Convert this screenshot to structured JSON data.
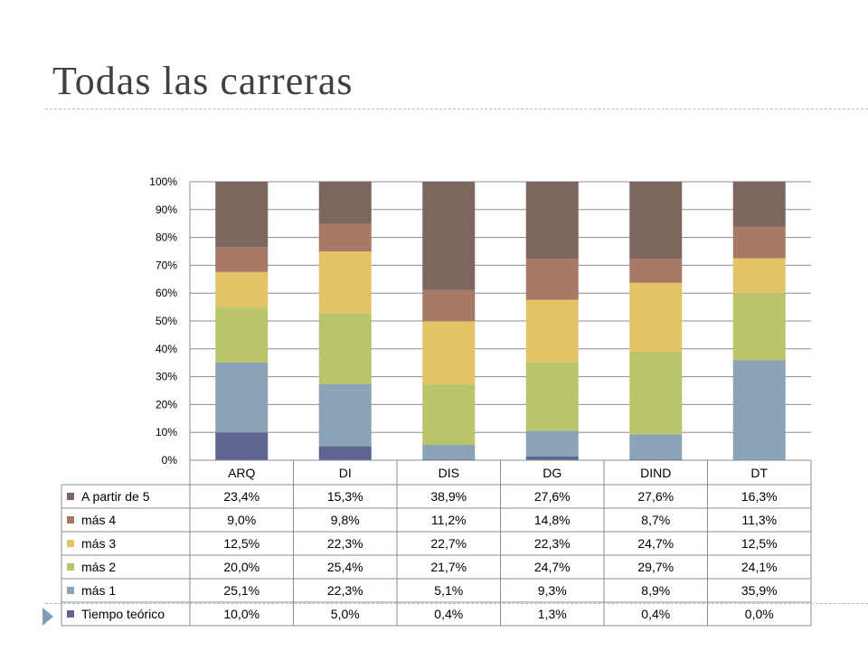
{
  "slide": {
    "title": "Todas las carreras"
  },
  "chart_data": {
    "type": "bar",
    "stacked": "percent",
    "categories": [
      "ARQ",
      "DI",
      "DIS",
      "DG",
      "DIND",
      "DT"
    ],
    "ylim": [
      0,
      100
    ],
    "yticks": [
      "0%",
      "10%",
      "20%",
      "30%",
      "40%",
      "50%",
      "60%",
      "70%",
      "80%",
      "90%",
      "100%"
    ],
    "grid": true,
    "legend": "data table",
    "series": [
      {
        "name": "Tiempo teórico",
        "color": "#5f6591",
        "values": [
          10.0,
          5.0,
          0.4,
          1.3,
          0.4,
          0.0
        ],
        "labels": [
          "10,0%",
          "5,0%",
          "0,4%",
          "1,3%",
          "0,4%",
          "0,0%"
        ]
      },
      {
        "name": "más 1",
        "color": "#8ba3b6",
        "values": [
          25.1,
          22.3,
          5.1,
          9.3,
          8.9,
          35.9
        ],
        "labels": [
          "25,1%",
          "22,3%",
          "5,1%",
          "9,3%",
          "8,9%",
          "35,9%"
        ]
      },
      {
        "name": "más 2",
        "color": "#b9c46b",
        "values": [
          20.0,
          25.4,
          21.7,
          24.7,
          29.7,
          24.1
        ],
        "labels": [
          "20,0%",
          "25,4%",
          "21,7%",
          "24,7%",
          "29,7%",
          "24,1%"
        ]
      },
      {
        "name": "más 3",
        "color": "#e2c466",
        "values": [
          12.5,
          22.3,
          22.7,
          22.3,
          24.7,
          12.5
        ],
        "labels": [
          "12,5%",
          "22,3%",
          "22,7%",
          "22,3%",
          "24,7%",
          "12,5%"
        ]
      },
      {
        "name": "más 4",
        "color": "#a87967",
        "values": [
          9.0,
          9.8,
          11.2,
          14.8,
          8.7,
          11.3
        ],
        "labels": [
          "9,0%",
          "9,8%",
          "11,2%",
          "14,8%",
          "8,7%",
          "11,3%"
        ]
      },
      {
        "name": "A partir de 5",
        "color": "#7d665d",
        "values": [
          23.4,
          15.3,
          38.9,
          27.6,
          27.6,
          16.3
        ],
        "labels": [
          "23,4%",
          "15,3%",
          "38,9%",
          "27,6%",
          "27,6%",
          "16,3%"
        ]
      }
    ]
  }
}
